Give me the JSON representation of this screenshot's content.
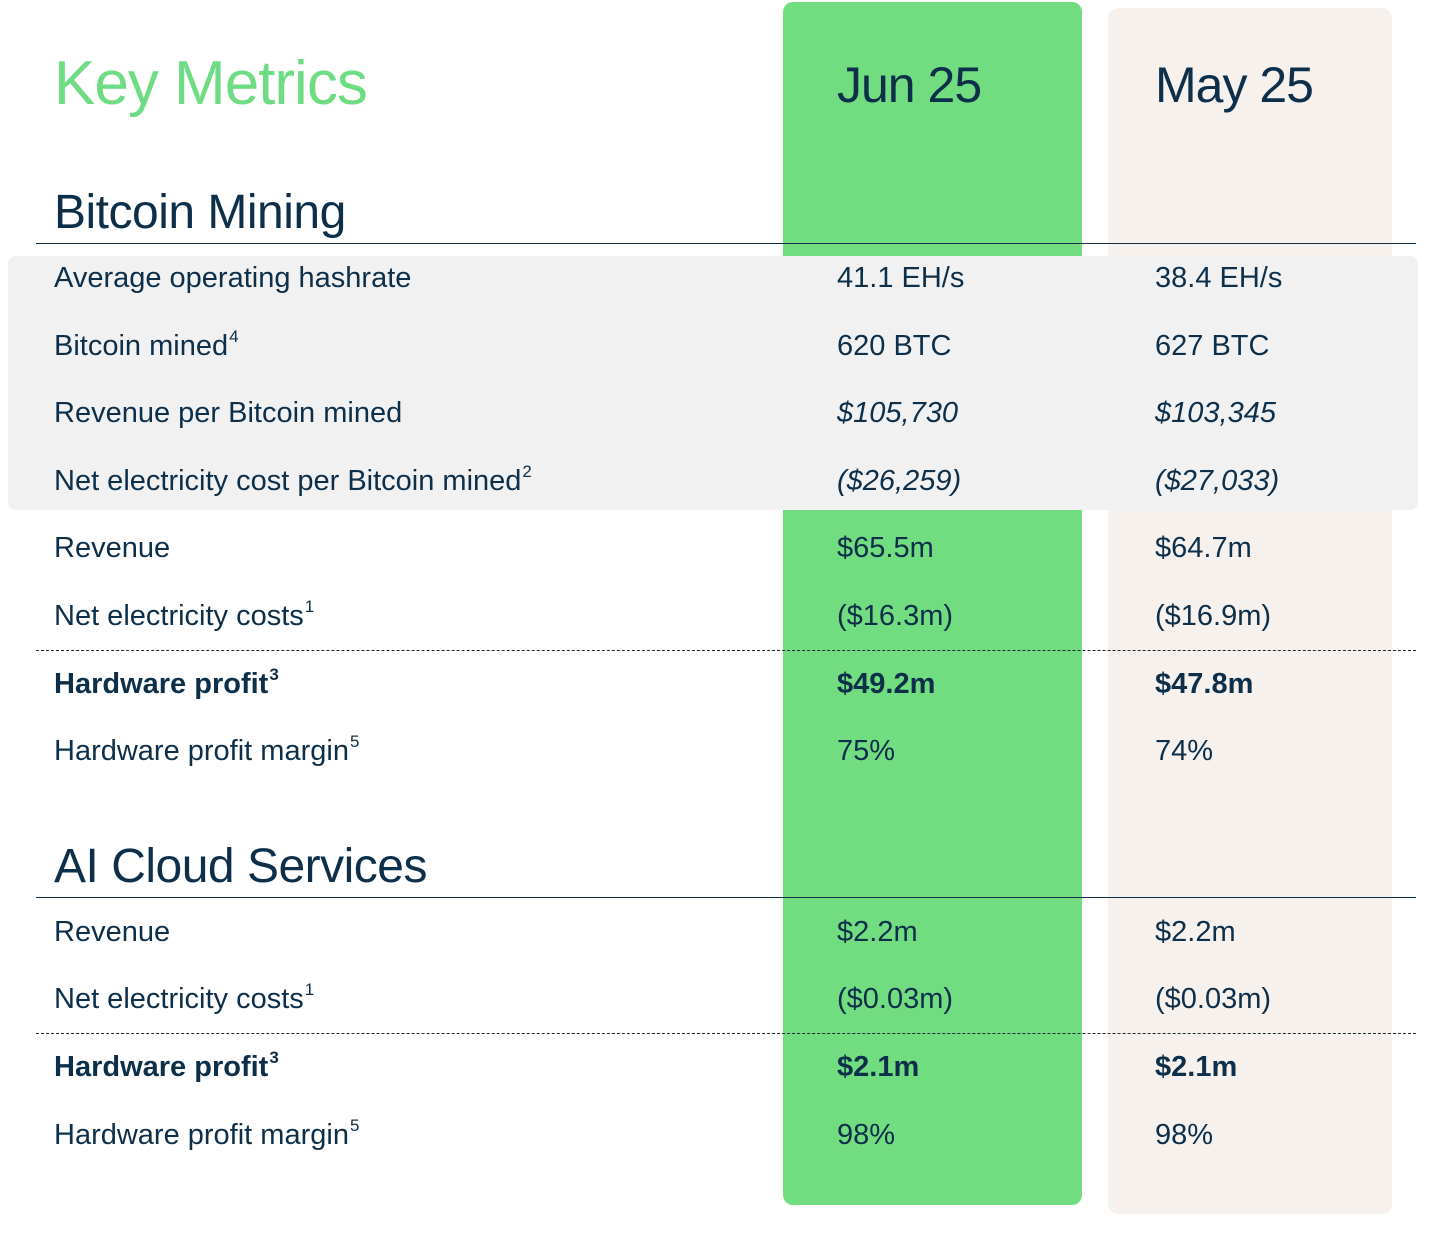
{
  "title": "Key Metrics",
  "columns": {
    "jun": "Jun 25",
    "may": "May 25"
  },
  "colors": {
    "title": "#6edc83",
    "text": "#0d2f4a",
    "jun_bg": "#72dc80",
    "may_bg": "#f6f1ed",
    "band_bg": "#f1f1f1"
  },
  "sections": {
    "mining": {
      "title": "Bitcoin Mining",
      "rows": [
        {
          "label": "Average operating hashrate",
          "sup": "",
          "jun": "41.1 EH/s",
          "may": "38.4 EH/s"
        },
        {
          "label": "Bitcoin mined",
          "sup": "4",
          "jun": "620 BTC",
          "may": "627 BTC"
        },
        {
          "label": "Revenue per Bitcoin mined",
          "sup": "",
          "jun": "$105,730",
          "may": "$103,345"
        },
        {
          "label": "Net electricity cost per Bitcoin mined",
          "sup": "2",
          "jun": "($26,259)",
          "may": "($27,033)"
        },
        {
          "label": "Revenue",
          "sup": "",
          "jun": "$65.5m",
          "may": "$64.7m"
        },
        {
          "label": "Net electricity costs",
          "sup": "1",
          "jun": "($16.3m)",
          "may": "($16.9m)"
        },
        {
          "label": "Hardware profit",
          "sup": "3",
          "jun": "$49.2m",
          "may": "$47.8m"
        },
        {
          "label": "Hardware profit margin",
          "sup": "5",
          "jun": "75%",
          "may": "74%"
        }
      ]
    },
    "ai": {
      "title": "AI Cloud Services",
      "rows": [
        {
          "label": "Revenue",
          "sup": "",
          "jun": "$2.2m",
          "may": "$2.2m"
        },
        {
          "label": "Net electricity costs",
          "sup": "1",
          "jun": "($0.03m)",
          "may": "($0.03m)"
        },
        {
          "label": "Hardware profit",
          "sup": "3",
          "jun": "$2.1m",
          "may": "$2.1m"
        },
        {
          "label": "Hardware profit margin",
          "sup": "5",
          "jun": "98%",
          "may": "98%"
        }
      ]
    }
  }
}
